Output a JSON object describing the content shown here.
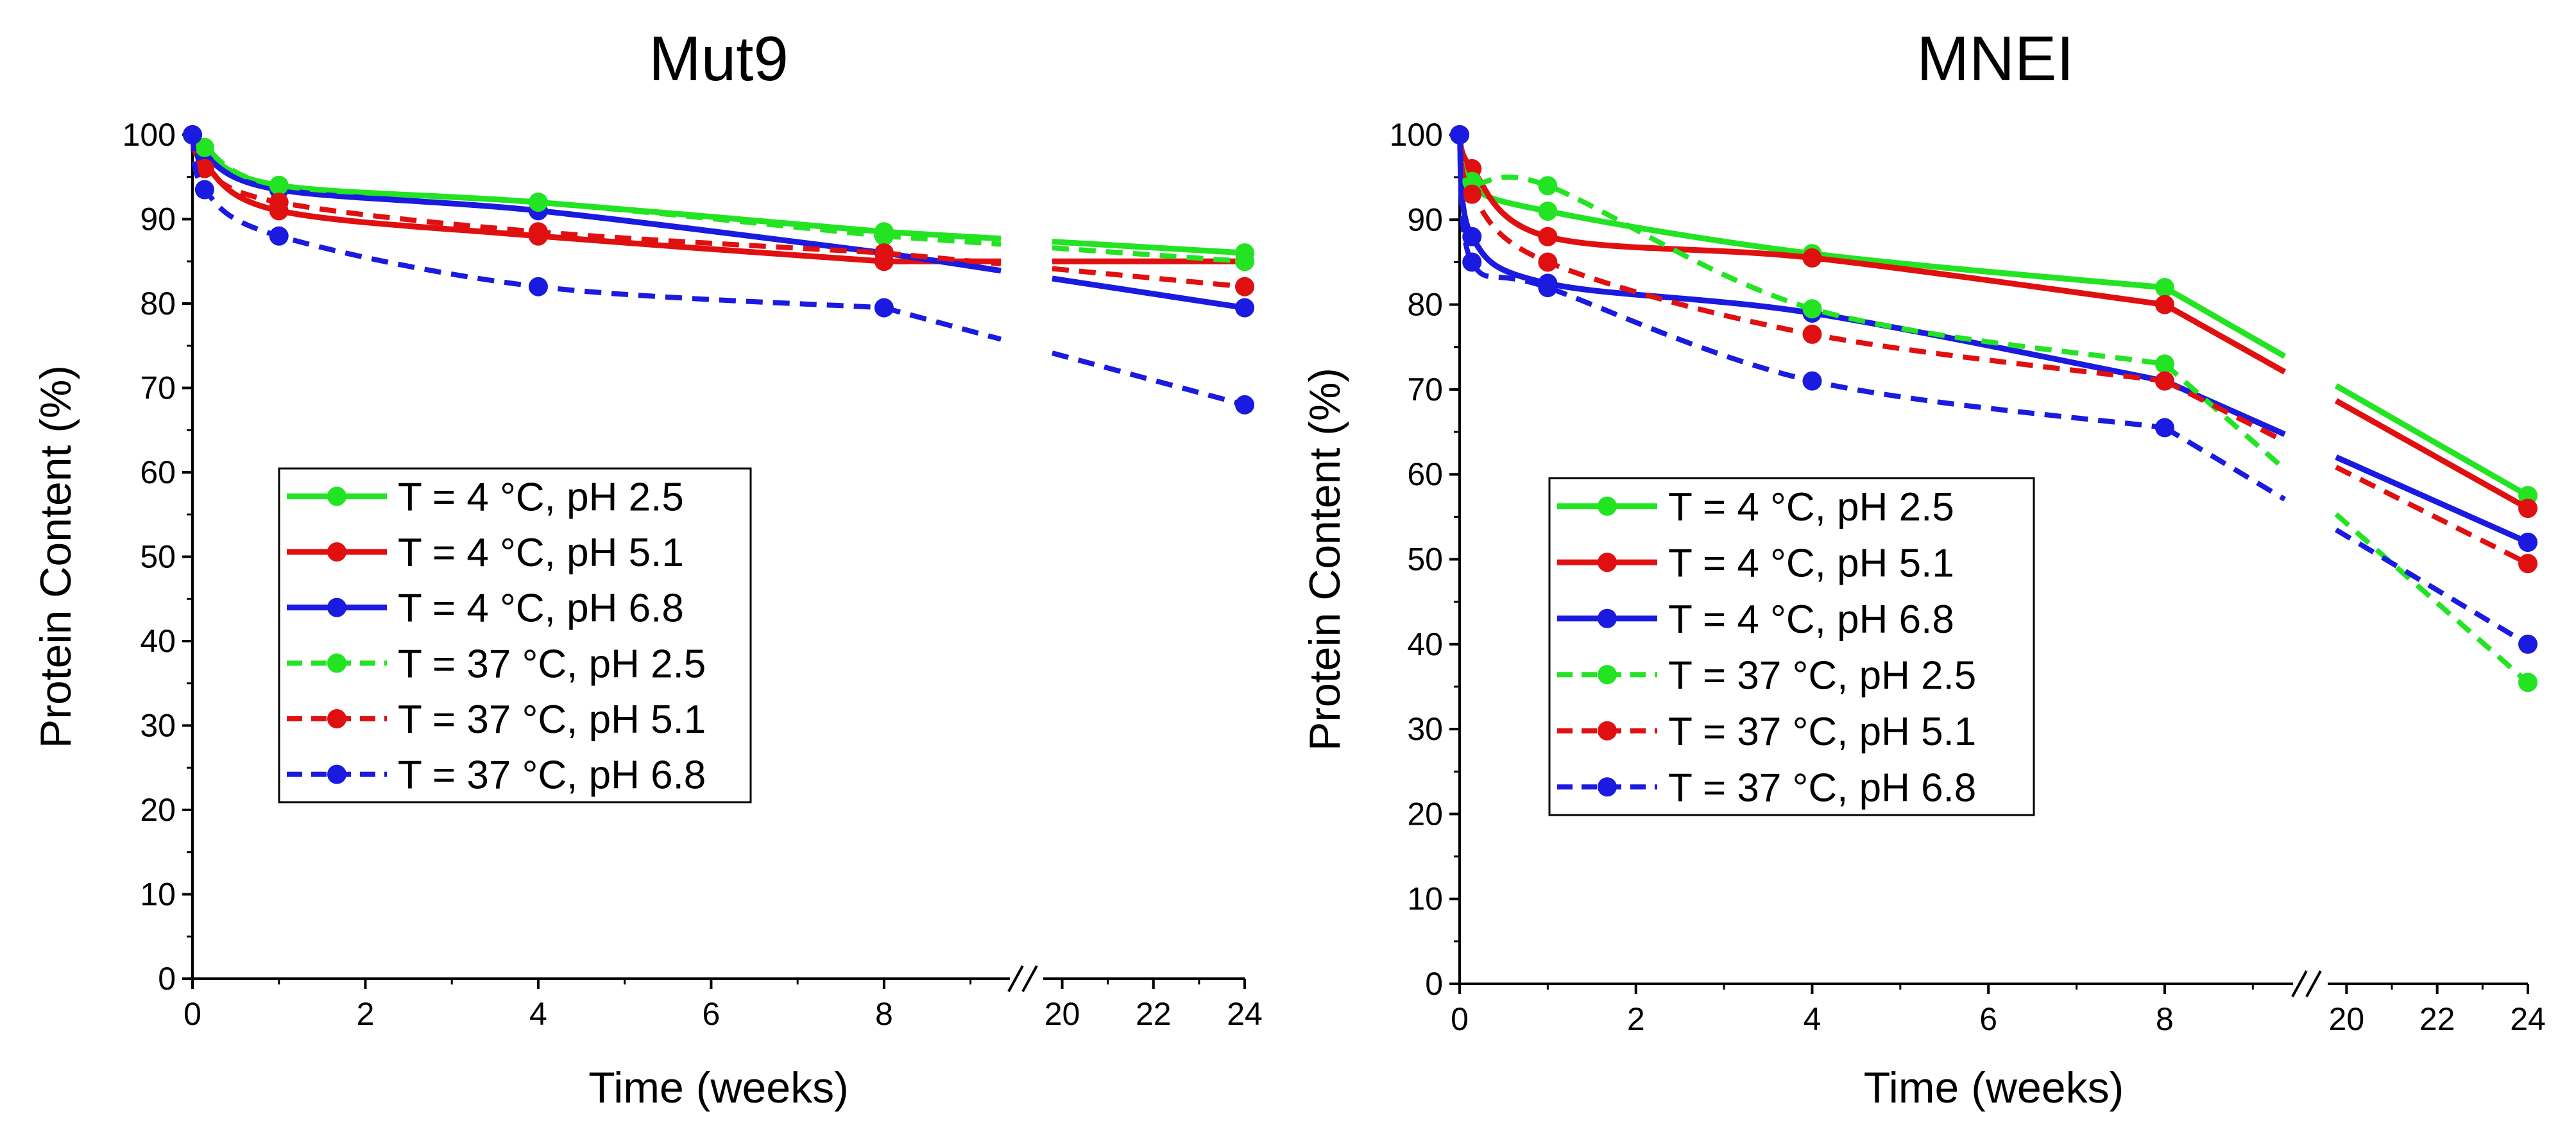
{
  "chart_data": [
    {
      "type": "line",
      "title": "Mut9",
      "xlabel": "Time (weeks)",
      "ylabel": "Protein Content (%)",
      "ylim": [
        0,
        100
      ],
      "yticks": [
        0,
        10,
        20,
        30,
        40,
        50,
        60,
        70,
        80,
        90,
        100
      ],
      "xticks": [
        0,
        2,
        4,
        6,
        8,
        20,
        22,
        24
      ],
      "x_segments": [
        [
          0,
          9.5
        ],
        [
          19.5,
          24
        ]
      ],
      "axis_break_between": [
        9.5,
        19.5
      ],
      "grid": false,
      "legend_position": "center-left",
      "series": [
        {
          "name": "T = 4 °C, pH 2.5",
          "color": "#22e422",
          "dashed": false,
          "x": [
            0,
            0.14,
            1,
            4,
            8,
            24
          ],
          "values": [
            100,
            98,
            94,
            92,
            88.5,
            86
          ]
        },
        {
          "name": "T = 4 °C, pH 5.1",
          "color": "#e01010",
          "dashed": false,
          "x": [
            0,
            0.14,
            1,
            4,
            8,
            24
          ],
          "values": [
            100,
            96.5,
            91,
            88,
            85,
            85
          ]
        },
        {
          "name": "T = 4 °C, pH 6.8",
          "color": "#1a1ae0",
          "dashed": false,
          "x": [
            0,
            0.14,
            1,
            4,
            8,
            24
          ],
          "values": [
            100,
            97.5,
            93.5,
            91,
            86,
            79.5
          ]
        },
        {
          "name": "T = 37 °C, pH 2.5",
          "color": "#22e422",
          "dashed": true,
          "x": [
            0,
            0.14,
            1,
            4,
            8,
            24
          ],
          "values": [
            100,
            98.5,
            94,
            92,
            88,
            85
          ]
        },
        {
          "name": "T = 37 °C, pH 5.1",
          "color": "#e01010",
          "dashed": true,
          "x": [
            0,
            0.14,
            1,
            4,
            8,
            24
          ],
          "values": [
            100,
            96,
            92,
            88.5,
            86,
            82
          ]
        },
        {
          "name": "T = 37 °C, pH 6.8",
          "color": "#1a1ae0",
          "dashed": true,
          "x": [
            0,
            0.14,
            1,
            4,
            8,
            24
          ],
          "values": [
            100,
            93.5,
            88,
            82,
            79.5,
            68
          ]
        }
      ]
    },
    {
      "type": "line",
      "title": "MNEI",
      "xlabel": "Time (weeks)",
      "ylabel": "Protein Content (%)",
      "ylim": [
        0,
        100
      ],
      "yticks": [
        0,
        10,
        20,
        30,
        40,
        50,
        60,
        70,
        80,
        90,
        100
      ],
      "xticks": [
        0,
        2,
        4,
        6,
        8,
        20,
        22,
        24
      ],
      "x_segments": [
        [
          0,
          9.5
        ],
        [
          19.5,
          24
        ]
      ],
      "axis_break_between": [
        9.5,
        19.5
      ],
      "grid": false,
      "legend_position": "center-left",
      "series": [
        {
          "name": "T = 4 °C, pH 2.5",
          "color": "#22e422",
          "dashed": false,
          "x": [
            0,
            0.14,
            1,
            4,
            8,
            24
          ],
          "values": [
            100,
            94,
            91,
            86,
            82,
            57.5
          ]
        },
        {
          "name": "T = 4 °C, pH 5.1",
          "color": "#e01010",
          "dashed": false,
          "x": [
            0,
            0.14,
            1,
            4,
            8,
            24
          ],
          "values": [
            100,
            96,
            88,
            85.5,
            80,
            56
          ]
        },
        {
          "name": "T = 4 °C, pH 6.8",
          "color": "#1a1ae0",
          "dashed": false,
          "x": [
            0,
            0.14,
            1,
            4,
            8,
            24
          ],
          "values": [
            100,
            88,
            82.5,
            79,
            71,
            52
          ]
        },
        {
          "name": "T = 37 °C, pH 2.5",
          "color": "#22e422",
          "dashed": true,
          "x": [
            0,
            0.14,
            1,
            4,
            8,
            24
          ],
          "values": [
            100,
            94.5,
            94,
            79.5,
            73,
            35.5
          ]
        },
        {
          "name": "T = 37 °C, pH 5.1",
          "color": "#e01010",
          "dashed": true,
          "x": [
            0,
            0.14,
            1,
            4,
            8,
            24
          ],
          "values": [
            100,
            93,
            85,
            76.5,
            71,
            49.5
          ]
        },
        {
          "name": "T = 37 °C, pH 6.8",
          "color": "#1a1ae0",
          "dashed": true,
          "x": [
            0,
            0.14,
            1,
            4,
            8,
            24
          ],
          "values": [
            100,
            85,
            82,
            71,
            65.5,
            40
          ]
        }
      ]
    }
  ]
}
